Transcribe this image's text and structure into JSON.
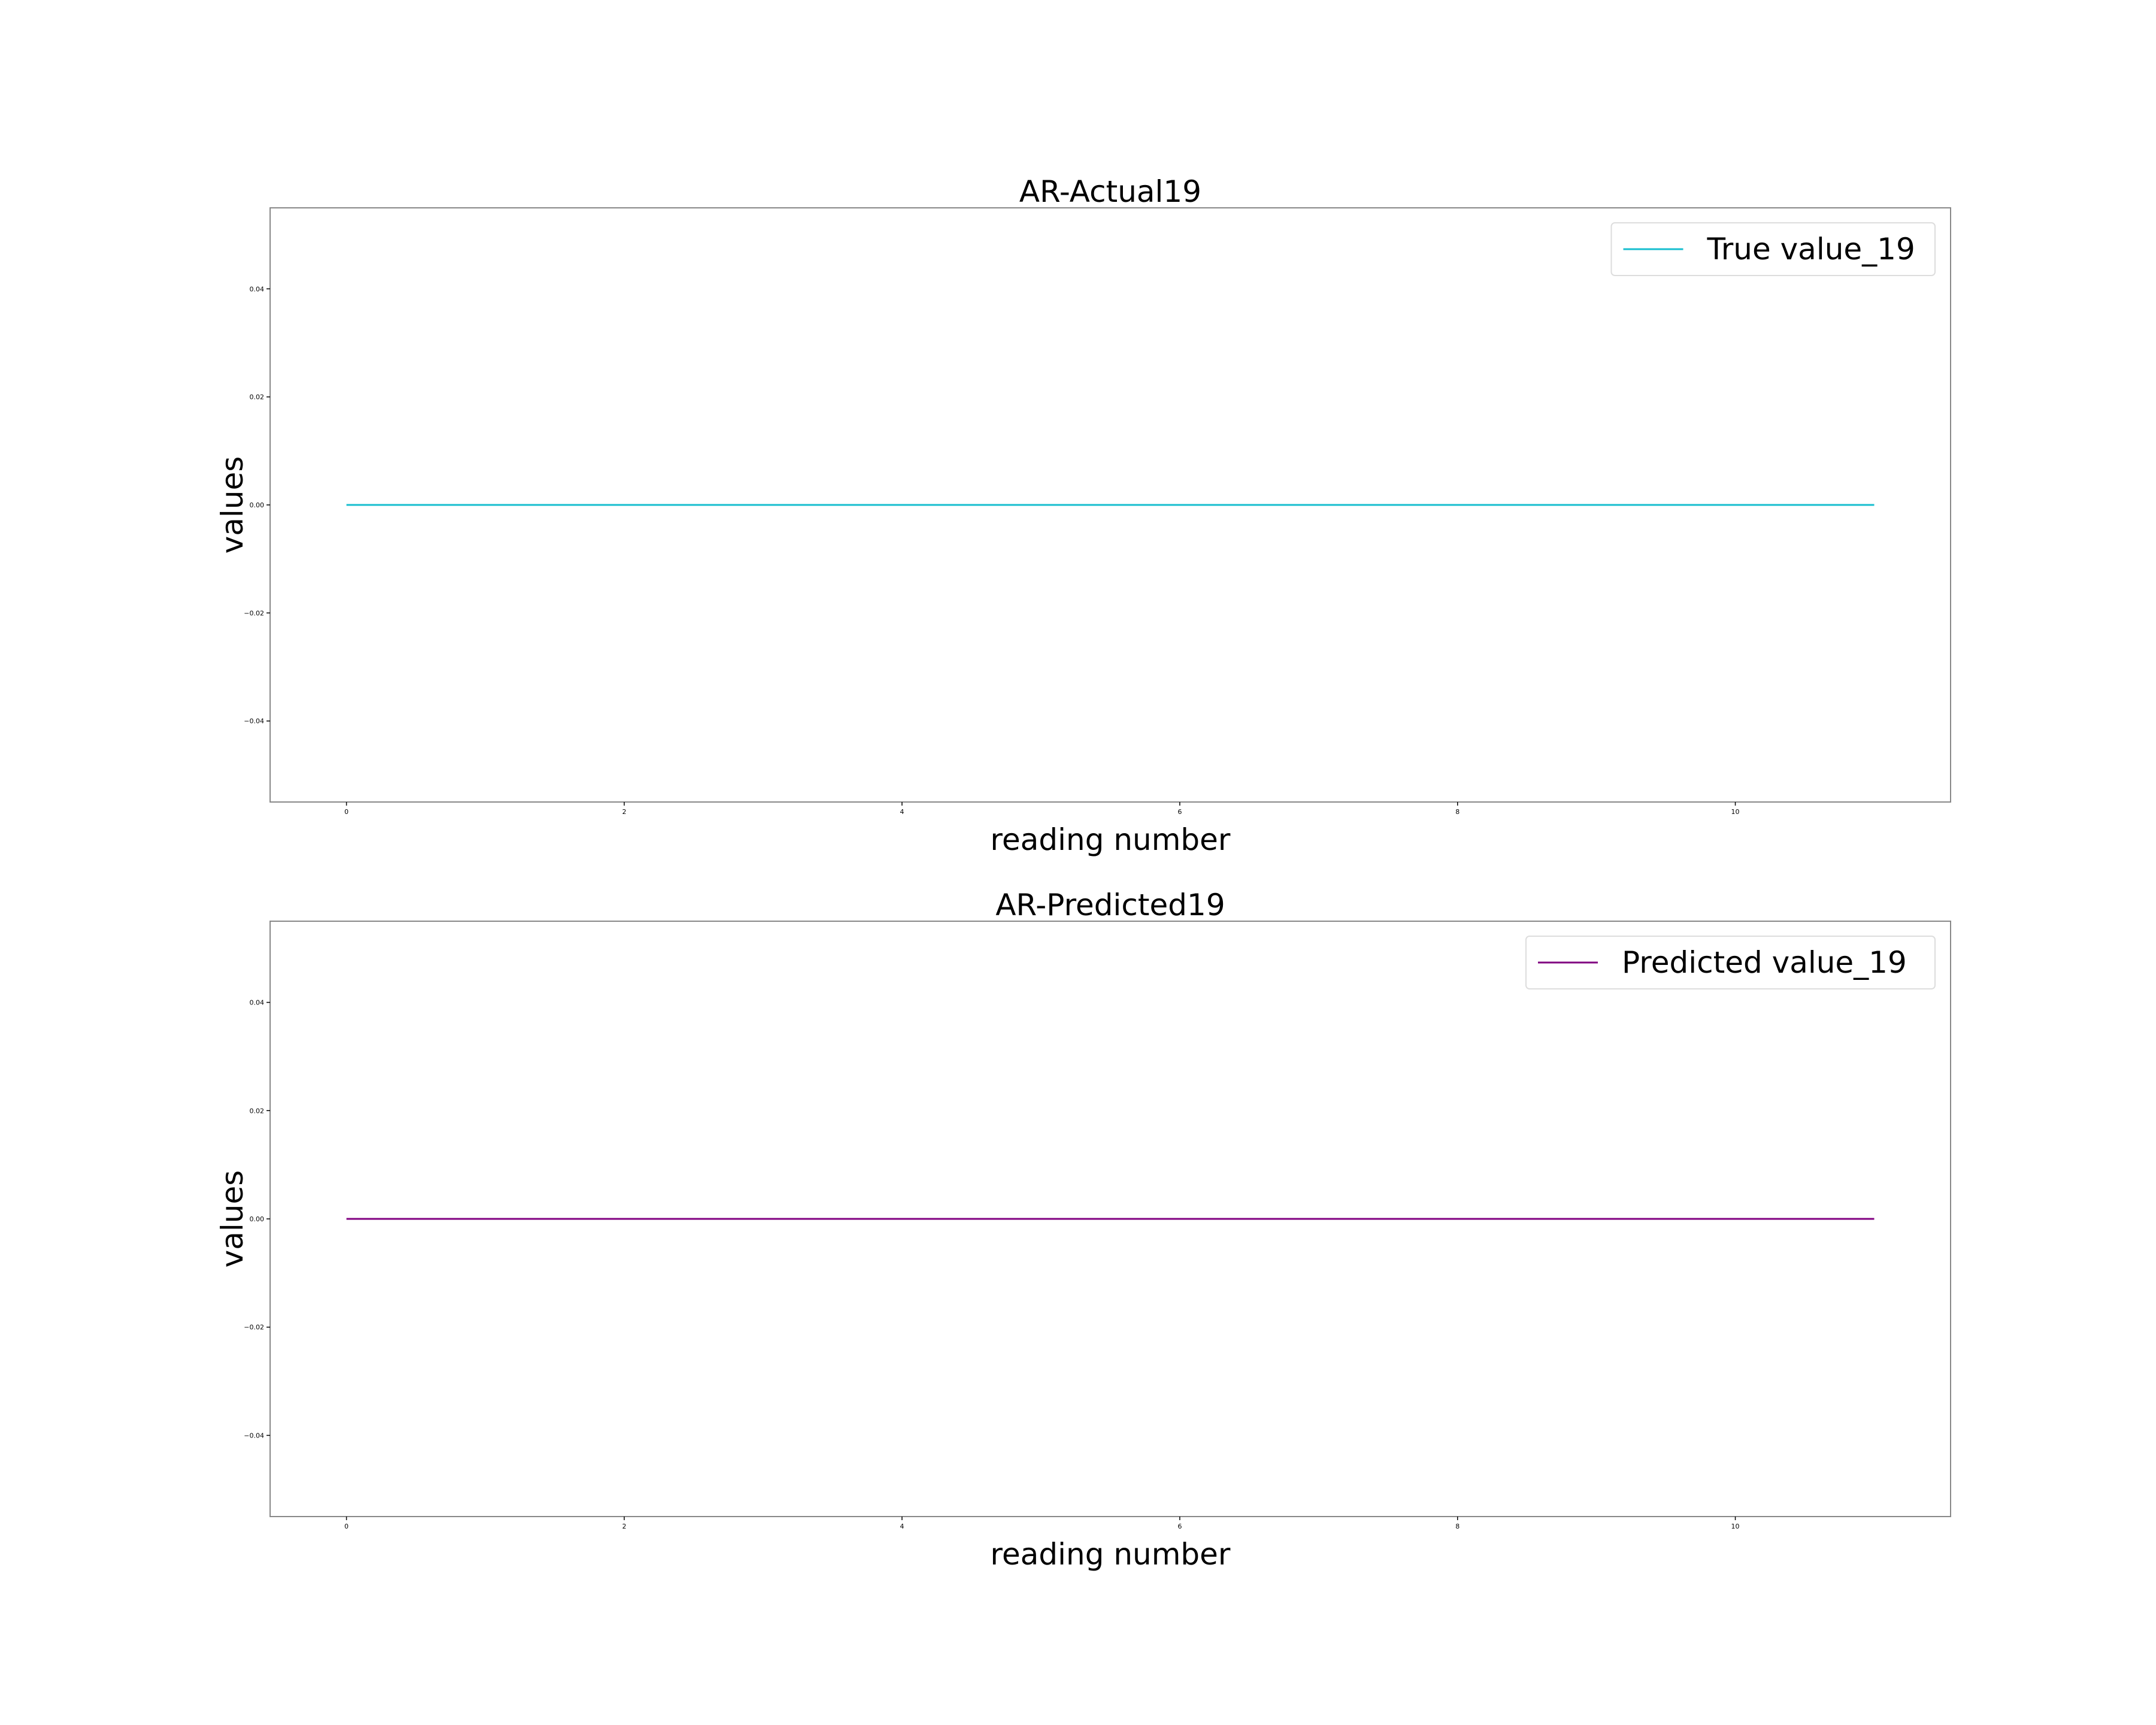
{
  "chart_data": [
    {
      "type": "line",
      "title": "AR-Actual19",
      "xlabel": "reading number",
      "ylabel": "values",
      "xlim": [
        -0.55,
        11.55
      ],
      "ylim": [
        -0.055,
        0.055
      ],
      "xticks": [
        0,
        2,
        4,
        6,
        8,
        10
      ],
      "xtick_labels": [
        "0",
        "2",
        "4",
        "6",
        "8",
        "10"
      ],
      "yticks": [
        0.04,
        0.02,
        0.0,
        -0.02,
        -0.04
      ],
      "ytick_labels": [
        "0.04",
        "0.02",
        "0.00",
        "−0.02",
        "−0.04"
      ],
      "grid": false,
      "legend_position": "top-right",
      "series": [
        {
          "name": "True value_19",
          "color": "#17becf",
          "x": [
            0,
            1,
            2,
            3,
            4,
            5,
            6,
            7,
            8,
            9,
            10,
            11
          ],
          "values": [
            0,
            0,
            0,
            0,
            0,
            0,
            0,
            0,
            0,
            0,
            0,
            0
          ]
        }
      ]
    },
    {
      "type": "line",
      "title": "AR-Predicted19",
      "xlabel": "reading number",
      "ylabel": "values",
      "xlim": [
        -0.55,
        11.55
      ],
      "ylim": [
        -0.055,
        0.055
      ],
      "xticks": [
        0,
        2,
        4,
        6,
        8,
        10
      ],
      "xtick_labels": [
        "0",
        "2",
        "4",
        "6",
        "8",
        "10"
      ],
      "yticks": [
        0.04,
        0.02,
        0.0,
        -0.02,
        -0.04
      ],
      "ytick_labels": [
        "0.04",
        "0.02",
        "0.00",
        "−0.02",
        "−0.04"
      ],
      "grid": false,
      "legend_position": "top-right",
      "series": [
        {
          "name": "Predicted value_19",
          "color": "#800080",
          "x": [
            0,
            1,
            2,
            3,
            4,
            5,
            6,
            7,
            8,
            9,
            10,
            11
          ],
          "values": [
            0,
            0,
            0,
            0,
            0,
            0,
            0,
            0,
            0,
            0,
            0,
            0
          ]
        }
      ]
    }
  ]
}
